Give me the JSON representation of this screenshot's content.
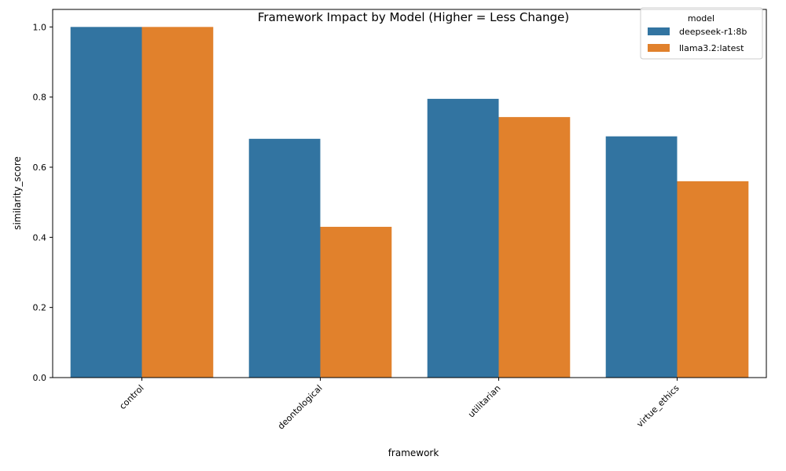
{
  "chart_data": {
    "type": "bar",
    "title": "Framework Impact by Model (Higher = Less Change)",
    "xlabel": "framework",
    "ylabel": "similarity_score",
    "categories": [
      "control",
      "deontological",
      "utilitarian",
      "virtue_ethics"
    ],
    "series": [
      {
        "name": "deepseek-r1:8b",
        "color": "#3274a1",
        "values": [
          1.0,
          0.681,
          0.795,
          0.688
        ]
      },
      {
        "name": "llama3.2:latest",
        "color": "#e1812c",
        "values": [
          1.0,
          0.43,
          0.743,
          0.56
        ]
      }
    ],
    "ylim": [
      0,
      1.05
    ],
    "yticks": [
      "0.0",
      "0.2",
      "0.4",
      "0.6",
      "0.8",
      "1.0"
    ],
    "grid": false,
    "legend": {
      "title": "model",
      "position": "top-right"
    }
  }
}
